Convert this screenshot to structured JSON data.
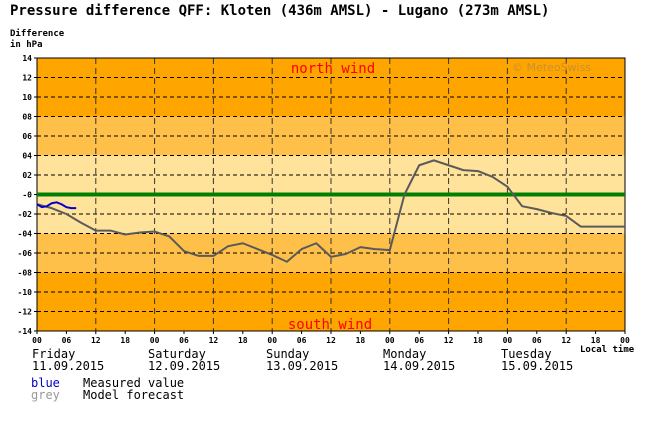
{
  "title": "Pressure difference QFF: Kloten (436m AMSL) - Lugano (273m AMSL)",
  "ylabel_line1": "Difference",
  "ylabel_line2": "in hPa",
  "copyright": "© MeteoSwiss",
  "north_label": "north wind",
  "south_label": "south wind",
  "local_time_label": "Local time",
  "days": [
    {
      "name": "Friday",
      "date": "11.09.2015"
    },
    {
      "name": "Saturday",
      "date": "12.09.2015"
    },
    {
      "name": "Sunday",
      "date": "13.09.2015"
    },
    {
      "name": "Monday",
      "date": "14.09.2015"
    },
    {
      "name": "Tuesday",
      "date": "15.09.2015"
    }
  ],
  "legend": [
    {
      "key": "blue",
      "label": "Measured value",
      "color": "#0000cc"
    },
    {
      "key": "grey",
      "label": "Model forecast",
      "color": "#999999"
    }
  ],
  "colors": {
    "band_outer": "#ffa500",
    "band_mid": "#ffc04a",
    "band_inner": "#ffe39a",
    "zero_line": "#008000",
    "forecast": "#5a5a5a",
    "measured": "#0000cc",
    "wind_label": "#ff0000"
  },
  "chart_data": {
    "type": "line",
    "title": "Pressure difference QFF: Kloten (436m AMSL) - Lugano (273m AMSL)",
    "ylabel": "Difference in hPa",
    "xlabel": "Local time",
    "ylim": [
      -14,
      14
    ],
    "yticks": [
      14,
      12,
      10,
      8,
      6,
      4,
      2,
      0,
      -2,
      -4,
      -6,
      -8,
      -10,
      -12,
      -14
    ],
    "ytick_labels": [
      "14",
      "12",
      "10",
      "08",
      "06",
      "04",
      "02",
      "-0",
      "-02",
      "-04",
      "-06",
      "-08",
      "-10",
      "-12",
      "-14"
    ],
    "x_unit": "hours since 11.09.2015 00",
    "xlim": [
      0,
      120
    ],
    "xtick_labels": [
      "00",
      "06",
      "12",
      "18",
      "00",
      "06",
      "12",
      "18",
      "00",
      "06",
      "12",
      "18",
      "00",
      "06",
      "12",
      "18",
      "00",
      "06",
      "12",
      "18",
      "00"
    ],
    "grid": true,
    "series": [
      {
        "name": "Model forecast",
        "color": "grey",
        "x": [
          0,
          3,
          6,
          9,
          12,
          15,
          18,
          21,
          24,
          27,
          30,
          33,
          36,
          39,
          42,
          45,
          48,
          51,
          54,
          57,
          60,
          63,
          66,
          69,
          72,
          75,
          78,
          81,
          84,
          87,
          90,
          93,
          96,
          99,
          102,
          105,
          108,
          111,
          114,
          117,
          120
        ],
        "y": [
          -1,
          -1.4,
          -2,
          -2.9,
          -3.7,
          -3.7,
          -4.1,
          -3.9,
          -3.8,
          -4.3,
          -5.8,
          -6.3,
          -6.3,
          -5.3,
          -5.0,
          -5.6,
          -6.2,
          -6.9,
          -5.6,
          -5.0,
          -6.4,
          -6.1,
          -5.4,
          -5.6,
          -5.7,
          0,
          3.0,
          3.5,
          3.0,
          2.5,
          2.4,
          1.8,
          0.8,
          -1.2,
          -1.5,
          -1.9,
          -2.2,
          -3.3,
          -3.3,
          -3.3,
          -3.3
        ],
        "x_visible_max": 120
      },
      {
        "name": "Measured value",
        "color": "blue",
        "x": [
          0,
          1,
          2,
          3,
          4,
          5,
          6,
          7,
          8
        ],
        "y": [
          -1.0,
          -1.3,
          -1.2,
          -0.9,
          -0.8,
          -1.0,
          -1.3,
          -1.4,
          -1.4
        ]
      }
    ],
    "bands": [
      {
        "from": 8,
        "to": 14,
        "level": "outer"
      },
      {
        "from": 4,
        "to": 8,
        "level": "mid"
      },
      {
        "from": 0,
        "to": 4,
        "level": "inner"
      },
      {
        "from": -4,
        "to": 0,
        "level": "inner"
      },
      {
        "from": -8,
        "to": -4,
        "level": "mid"
      },
      {
        "from": -14,
        "to": -8,
        "level": "outer"
      }
    ]
  }
}
